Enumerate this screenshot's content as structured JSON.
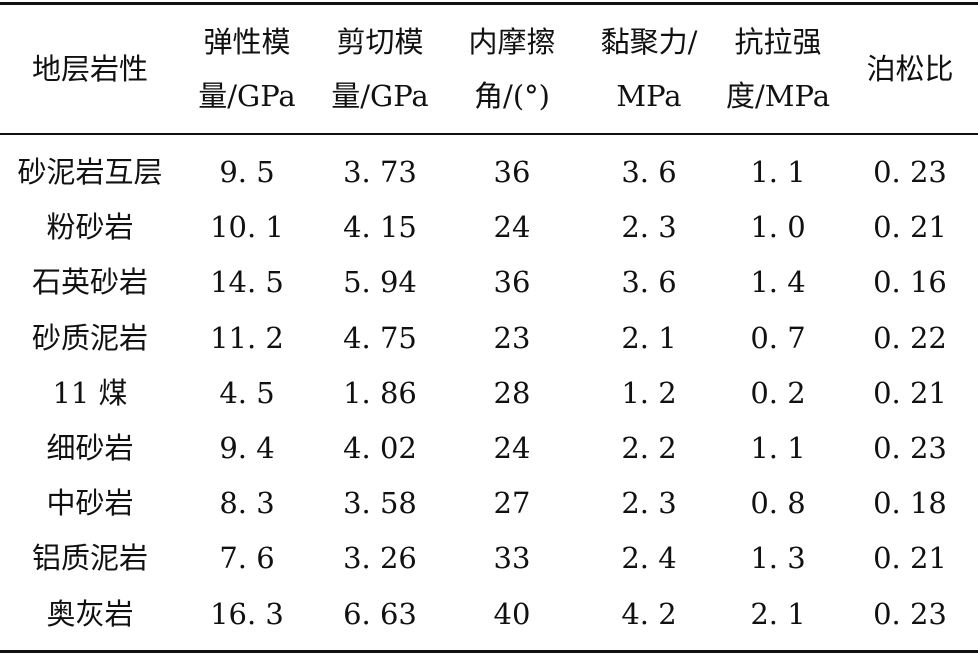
{
  "table": {
    "headers": [
      {
        "line1": "地层岩性",
        "line2": ""
      },
      {
        "line1": "弹性模",
        "line2": "量/GPa"
      },
      {
        "line1": "剪切模",
        "line2": "量/GPa"
      },
      {
        "line1": "内摩擦",
        "line2": "角/(°)"
      },
      {
        "line1": "黏聚力/",
        "line2": "MPa"
      },
      {
        "line1": "抗拉强",
        "line2": "度/MPa"
      },
      {
        "line1": "泊松比",
        "line2": ""
      }
    ],
    "rows": [
      [
        "砂泥岩互层",
        "9. 5",
        "3. 73",
        "36",
        "3. 6",
        "1. 1",
        "0. 23"
      ],
      [
        "粉砂岩",
        "10. 1",
        "4. 15",
        "24",
        "2. 3",
        "1. 0",
        "0. 21"
      ],
      [
        "石英砂岩",
        "14. 5",
        "5. 94",
        "36",
        "3. 6",
        "1. 4",
        "0. 16"
      ],
      [
        "砂质泥岩",
        "11. 2",
        "4. 75",
        "23",
        "2. 1",
        "0. 7",
        "0. 22"
      ],
      [
        "11 煤",
        "4. 5",
        "1. 86",
        "28",
        "1. 2",
        "0. 2",
        "0. 21"
      ],
      [
        "细砂岩",
        "9. 4",
        "4. 02",
        "24",
        "2. 2",
        "1. 1",
        "0. 23"
      ],
      [
        "中砂岩",
        "8. 3",
        "3. 58",
        "27",
        "2. 3",
        "0. 8",
        "0. 18"
      ],
      [
        "铝质泥岩",
        "7. 6",
        "3. 26",
        "33",
        "2. 4",
        "1. 3",
        "0. 21"
      ],
      [
        "奥灰岩",
        "16. 3",
        "6. 63",
        "40",
        "4. 2",
        "2. 1",
        "0. 23"
      ]
    ]
  }
}
